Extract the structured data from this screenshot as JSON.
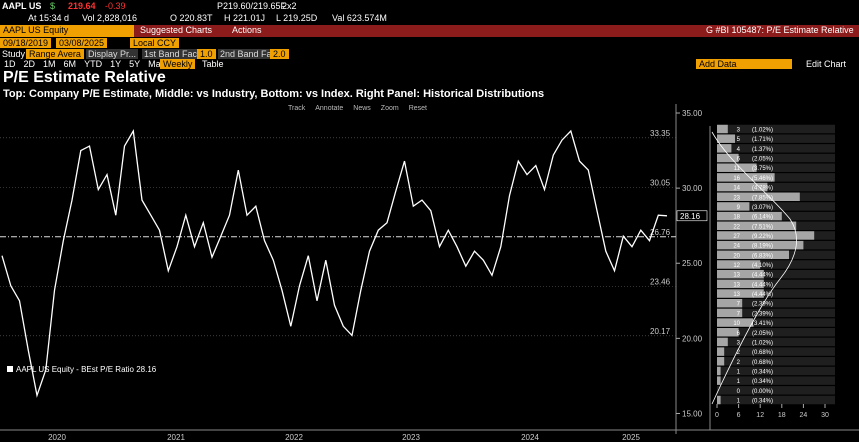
{
  "header": {
    "ticker": "AAPL US",
    "currency": "$",
    "price": "219.64",
    "change": "-0.39",
    "bid_ask": "P219.60/219.65F",
    "size": "2x2",
    "time": "At 15:34 d",
    "volume": "Vol 2,828,016",
    "open": "O 220.83T",
    "high": "H 221.01J",
    "low": "L 219.25D",
    "value": "Val 623.574M"
  },
  "toolbar": {
    "security": "AAPL US Equity",
    "suggested": "Suggested Charts",
    "actions": "Actions",
    "function": "G #BI 105487: P/E Estimate Relative",
    "start_date": "09/18/2019",
    "end_date": "03/08/2025",
    "currency": "Local CCY",
    "study": "Study",
    "range": "Range Avera",
    "display": "Display Pr...",
    "band1": "1st Band Fac...",
    "band1_value": "1.0",
    "band2": "2nd Band Fa...",
    "band2_value": "2.0",
    "periods": [
      "1D",
      "2D",
      "1M",
      "6M",
      "YTD",
      "1Y",
      "5Y",
      "Max"
    ],
    "frequency": "Weekly",
    "table": "Table",
    "add_data": "Add Data",
    "edit_chart": "Edit Chart",
    "chart_tools": [
      "Track",
      "Annotate",
      "News",
      "Zoom",
      "Reset"
    ]
  },
  "chart_data": {
    "type": "line",
    "title": "P/E Estimate Relative",
    "subtitle": "Top: Company P/E Estimate, Middle: vs Industry, Bottom: vs Index. Right Panel: Historical Distributions",
    "legend": "AAPL US Equity - BEst P/E Ratio 28.16",
    "last_value": 28.16,
    "color": "#ffffff",
    "x_labels": [
      "2020",
      "2021",
      "2022",
      "2023",
      "2024",
      "2025"
    ],
    "values": [
      25.5,
      23.5,
      22.5,
      19.2,
      16.2,
      17.9,
      23.2,
      26.5,
      29.2,
      32.5,
      32.8,
      29.9,
      30.9,
      28.2,
      32.8,
      33.8,
      29.2,
      28.2,
      27.2,
      24.5,
      26.1,
      28.2,
      26.1,
      27.7,
      25.4,
      26.8,
      28.2,
      31.2,
      28.2,
      28.8,
      26.5,
      25.2,
      23.2,
      20.8,
      23.5,
      25.5,
      22.5,
      25.2,
      22.2,
      20.8,
      20.2,
      23.2,
      25.8,
      27.2,
      27.7,
      29.8,
      31.8,
      28.8,
      29.2,
      28.5,
      26.1,
      27.2,
      26.1,
      24.8,
      25.8,
      25.2,
      24.2,
      26.1,
      29.5,
      31.8,
      30.9,
      31.5,
      29.9,
      32.2,
      33.2,
      33.8,
      31.8,
      31.2,
      28.5,
      25.8,
      24.5,
      26.8,
      26.1,
      27.2,
      26.5,
      28.2,
      28.16
    ],
    "ylim": [
      13.9,
      35.6
    ],
    "yticks": [
      {
        "value": 15,
        "label": "15.00"
      },
      {
        "value": 20,
        "label": "20.00"
      },
      {
        "value": 25,
        "label": "25.00"
      },
      {
        "value": 30,
        "label": "30.00"
      },
      {
        "value": 35,
        "label": "35.00"
      }
    ],
    "bands": [
      33.35,
      30.05,
      26.76,
      23.46,
      20.17
    ],
    "histogram": {
      "counts": [
        3,
        5,
        4,
        6,
        11,
        16,
        14,
        23,
        9,
        18,
        22,
        27,
        24,
        20,
        12,
        13,
        13,
        13,
        7,
        7,
        10,
        6,
        3,
        2,
        2,
        1,
        1,
        0,
        1
      ],
      "percent_labels": [
        "(1.02%)",
        "(1.71%)",
        "(1.37%)",
        "(2.05%)",
        "(3.75%)",
        "(5.46%)",
        "(4.78%)",
        "(7.85%)",
        "(3.07%)",
        "(6.14%)",
        "(7.51%)",
        "(9.22%)",
        "(8.19%)",
        "(6.83%)",
        "(4.10%)",
        "(4.44%)",
        "(4.44%)",
        "(4.44%)",
        "(2.39%)",
        "(2.39%)",
        "(3.41%)",
        "(2.05%)",
        "(1.02%)",
        "(0.68%)",
        "(0.68%)",
        "(0.34%)",
        "(0.34%)",
        "(0.00%)",
        "(0.34%)"
      ],
      "xlim": [
        0,
        30
      ],
      "xticks": [
        0,
        6,
        12,
        18,
        24,
        30
      ]
    }
  }
}
